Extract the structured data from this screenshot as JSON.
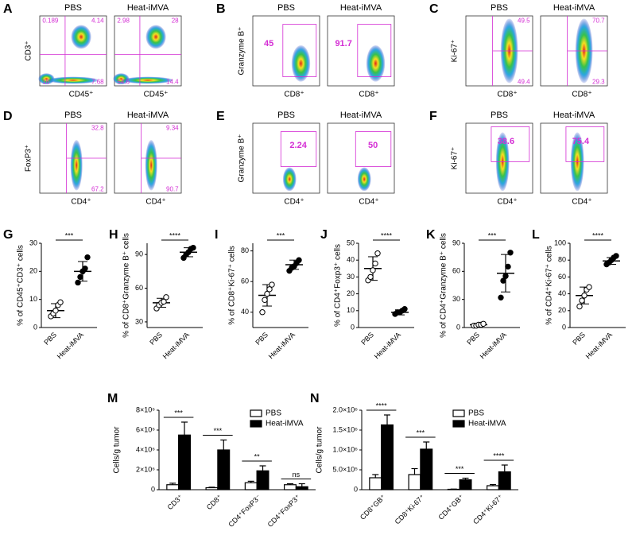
{
  "flow_panels": [
    {
      "panel": "A",
      "y_label": "CD3⁺",
      "x_label": "CD45⁺",
      "plots": [
        {
          "title": "PBS",
          "gates": [
            0.189,
            4.14,
            16,
            7.68
          ]
        },
        {
          "title": "Heat-iMVA",
          "gates": [
            2.98,
            28,
            54.6,
            14.4
          ]
        }
      ]
    },
    {
      "panel": "B",
      "y_label": "Granzyme B⁺",
      "x_label": "CD8⁺",
      "plots": [
        {
          "title": "PBS",
          "gates": [
            45
          ]
        },
        {
          "title": "Heat-iMVA",
          "gates": [
            91.7
          ]
        }
      ]
    },
    {
      "panel": "C",
      "y_label": "Ki-67⁺",
      "x_label": "CD8⁺",
      "plots": [
        {
          "title": "PBS",
          "gates": [
            49.5,
            49.4
          ]
        },
        {
          "title": "Heat-iMVA",
          "gates": [
            70.7,
            29.3
          ]
        }
      ]
    },
    {
      "panel": "D",
      "y_label": "FoxP3⁺",
      "x_label": "CD4⁺",
      "plots": [
        {
          "title": "PBS",
          "gates": [
            32.8,
            67.2
          ]
        },
        {
          "title": "Heat-iMVA",
          "gates": [
            9.34,
            90.7
          ]
        }
      ]
    },
    {
      "panel": "E",
      "y_label": "Granzyme B⁺",
      "x_label": "CD4⁺",
      "plots": [
        {
          "title": "PBS",
          "gates": [
            2.24
          ]
        },
        {
          "title": "Heat-iMVA",
          "gates": [
            50
          ]
        }
      ]
    },
    {
      "panel": "F",
      "y_label": "Ki-67⁺",
      "x_label": "CD4⁺",
      "plots": [
        {
          "title": "PBS",
          "gates": [
            38.6
          ]
        },
        {
          "title": "Heat-iMVA",
          "gates": [
            75.4
          ]
        }
      ]
    }
  ],
  "chart_data": [
    {
      "type": "dot",
      "panel": "G",
      "y_label": "% of CD45⁺CD3⁺ cells",
      "categories": [
        "PBS",
        "Heat-iMVA"
      ],
      "points": [
        [
          4,
          5,
          6,
          8,
          9
        ],
        [
          16,
          18,
          20,
          21,
          25
        ]
      ],
      "mean": [
        6,
        20
      ],
      "sd": [
        2.5,
        3.5
      ],
      "significance": "***",
      "ylim": [
        0,
        30
      ],
      "yticks": [
        0,
        10,
        20,
        30
      ]
    },
    {
      "type": "dot",
      "panel": "H",
      "y_label": "% of CD8⁺Granzyme B⁺ cells",
      "categories": [
        "PBS",
        "Heat-iMVA"
      ],
      "points": [
        [
          42,
          45,
          47,
          48,
          52
        ],
        [
          87,
          90,
          92,
          95,
          96
        ]
      ],
      "mean": [
        47,
        92
      ],
      "sd": [
        4,
        4
      ],
      "significance": "****",
      "ylim": [
        25,
        100
      ],
      "yticks": [
        30,
        60,
        90
      ]
    },
    {
      "type": "dot",
      "panel": "I",
      "y_label": "% of CD8⁺Ki-67⁺ cells",
      "categories": [
        "PBS",
        "Heat-iMVA"
      ],
      "points": [
        [
          40,
          48,
          52,
          55,
          58
        ],
        [
          67,
          69,
          70,
          72,
          74
        ]
      ],
      "mean": [
        51,
        71
      ],
      "sd": [
        7,
        3
      ],
      "significance": "***",
      "ylim": [
        30,
        85
      ],
      "yticks": [
        40,
        60,
        80
      ]
    },
    {
      "type": "dot",
      "panel": "J",
      "y_label": "% of CD4⁺Foxp3⁺ cells",
      "categories": [
        "PBS",
        "Heat-iMVA"
      ],
      "points": [
        [
          28,
          30,
          34,
          38,
          44
        ],
        [
          8,
          9,
          9,
          10,
          11
        ]
      ],
      "mean": [
        35,
        9
      ],
      "sd": [
        7,
        1.5
      ],
      "significance": "****",
      "ylim": [
        0,
        50
      ],
      "yticks": [
        0,
        10,
        20,
        30,
        40,
        50
      ]
    },
    {
      "type": "dot",
      "panel": "K",
      "y_label": "% of CD4⁺Granzyme B⁺ cells",
      "categories": [
        "PBS",
        "Heat-iMVA"
      ],
      "points": [
        [
          2,
          2,
          3,
          3,
          4
        ],
        [
          32,
          50,
          55,
          65,
          80
        ]
      ],
      "mean": [
        3,
        58
      ],
      "sd": [
        1,
        20
      ],
      "significance": "***",
      "ylim": [
        0,
        90
      ],
      "yticks": [
        0,
        30,
        60,
        90
      ]
    },
    {
      "type": "dot",
      "panel": "L",
      "y_label": "% of CD4⁺Ki-67⁺ cells",
      "categories": [
        "PBS",
        "Heat-iMVA"
      ],
      "points": [
        [
          25,
          32,
          38,
          45,
          48
        ],
        [
          75,
          77,
          80,
          83,
          85
        ]
      ],
      "mean": [
        38,
        79
      ],
      "sd": [
        10,
        4
      ],
      "significance": "****",
      "ylim": [
        0,
        100
      ],
      "yticks": [
        0,
        20,
        40,
        60,
        80,
        100
      ]
    },
    {
      "type": "bar",
      "panel": "M",
      "y_label": "Cells/g tumor",
      "categories": [
        "CD3⁺",
        "CD8⁺",
        "CD4⁺FoxP3⁻",
        "CD4⁺FoxP3⁺"
      ],
      "series": [
        {
          "name": "PBS",
          "color": "#ffffff",
          "values": [
            500000,
            200000,
            700000,
            500000
          ],
          "errors": [
            150000,
            50000,
            150000,
            100000
          ]
        },
        {
          "name": "Heat-iMVA",
          "color": "#000000",
          "values": [
            5500000,
            4000000,
            1900000,
            300000
          ],
          "errors": [
            1300000,
            1000000,
            500000,
            300000
          ]
        }
      ],
      "significance": [
        "***",
        "***",
        "**",
        "ns"
      ],
      "ylim": [
        0,
        8000000
      ],
      "yticks": [
        0,
        {
          "value": 2000000,
          "label": "2×10⁶"
        },
        {
          "value": 4000000,
          "label": "4×10⁶"
        },
        {
          "value": 6000000,
          "label": "6×10⁶"
        },
        {
          "value": 8000000,
          "label": "8×10⁶"
        }
      ]
    },
    {
      "type": "bar",
      "panel": "N",
      "y_label": "Cells/g tumor",
      "categories": [
        "CD8⁺GB⁺",
        "CD8⁺Ki-67⁺",
        "CD4⁺GB⁺",
        "CD4⁺Ki-67⁺"
      ],
      "series": [
        {
          "name": "PBS",
          "color": "#ffffff",
          "values": [
            300000,
            380000,
            10000,
            100000
          ],
          "errors": [
            80000,
            150000,
            5000,
            30000
          ]
        },
        {
          "name": "Heat-iMVA",
          "color": "#000000",
          "values": [
            1630000,
            1020000,
            250000,
            450000
          ],
          "errors": [
            250000,
            180000,
            40000,
            170000
          ]
        }
      ],
      "significance": [
        "****",
        "***",
        "***",
        "****"
      ],
      "ylim": [
        0,
        2000000
      ],
      "yticks": [
        0,
        {
          "value": 500000,
          "label": "5.0×10⁵"
        },
        {
          "value": 1000000,
          "label": "1.0×10⁶"
        },
        {
          "value": 1500000,
          "label": "1.5×10⁶"
        },
        {
          "value": 2000000,
          "label": "2.0×10⁶"
        }
      ]
    }
  ]
}
